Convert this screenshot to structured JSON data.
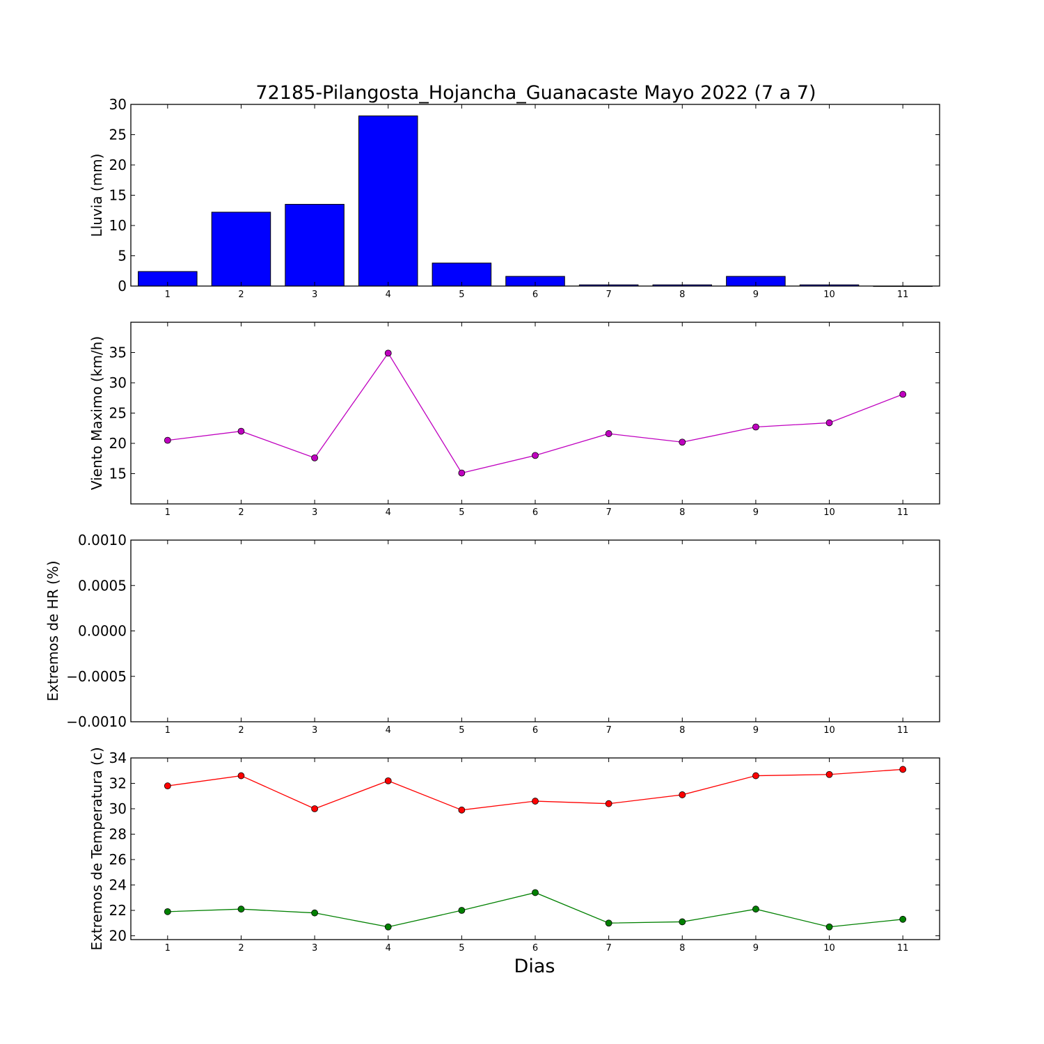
{
  "figure": {
    "title": "72185-Pilangosta_Hojancha_Guanacaste Mayo 2022  (7 a 7)",
    "xlabel": "Dias"
  },
  "chart_data": [
    {
      "type": "bar",
      "ylabel": "Lluvia (mm)",
      "categories": [
        1,
        2,
        3,
        4,
        5,
        6,
        7,
        8,
        9,
        10,
        11
      ],
      "ylim": [
        0,
        30
      ],
      "yticks": [
        0,
        5,
        10,
        15,
        20,
        25,
        30
      ],
      "ytick_labels": [
        "0",
        "5",
        "10",
        "15",
        "20",
        "25",
        "30"
      ],
      "series": [
        {
          "values": [
            2.4,
            12.2,
            13.5,
            28.1,
            3.8,
            1.6,
            0.2,
            0.2,
            1.6,
            0.2,
            0.0
          ],
          "color": "#0000ff"
        }
      ]
    },
    {
      "type": "line",
      "ylabel": "Viento Maximo (km/h)",
      "x": [
        1,
        2,
        3,
        4,
        5,
        6,
        7,
        8,
        9,
        10,
        11
      ],
      "ylim": [
        10,
        40
      ],
      "yticks": [
        15,
        20,
        25,
        30,
        35
      ],
      "ytick_labels": [
        "15",
        "20",
        "25",
        "30",
        "35"
      ],
      "series": [
        {
          "values": [
            20.5,
            22.0,
            17.6,
            34.9,
            15.1,
            18.0,
            21.6,
            20.2,
            22.7,
            23.4,
            28.1
          ],
          "color": "#bf00bf"
        }
      ]
    },
    {
      "type": "line",
      "ylabel": "Extremos de HR (%)",
      "x": [
        1,
        2,
        3,
        4,
        5,
        6,
        7,
        8,
        9,
        10,
        11
      ],
      "ylim": [
        -0.001,
        0.001
      ],
      "yticks": [
        -0.001,
        -0.0005,
        0.0,
        0.0005,
        0.001
      ],
      "ytick_labels": [
        "−0.0010",
        "−0.0005",
        "0.0000",
        "0.0005",
        "0.0010"
      ],
      "series": []
    },
    {
      "type": "line",
      "ylabel": "Extremos de Temperatura (c)",
      "x": [
        1,
        2,
        3,
        4,
        5,
        6,
        7,
        8,
        9,
        10,
        11
      ],
      "ylim": [
        19.7,
        34.0
      ],
      "yticks": [
        20,
        22,
        24,
        26,
        28,
        30,
        32,
        34
      ],
      "ytick_labels": [
        "20",
        "22",
        "24",
        "26",
        "28",
        "30",
        "32",
        "34"
      ],
      "series": [
        {
          "values": [
            31.8,
            32.6,
            30.0,
            32.2,
            29.9,
            30.6,
            30.4,
            31.1,
            32.6,
            32.7,
            33.1
          ],
          "color": "#ff0000"
        },
        {
          "values": [
            21.9,
            22.1,
            21.8,
            20.7,
            22.0,
            23.4,
            21.0,
            21.1,
            22.1,
            20.7,
            21.3
          ],
          "color": "#008000"
        }
      ]
    }
  ]
}
